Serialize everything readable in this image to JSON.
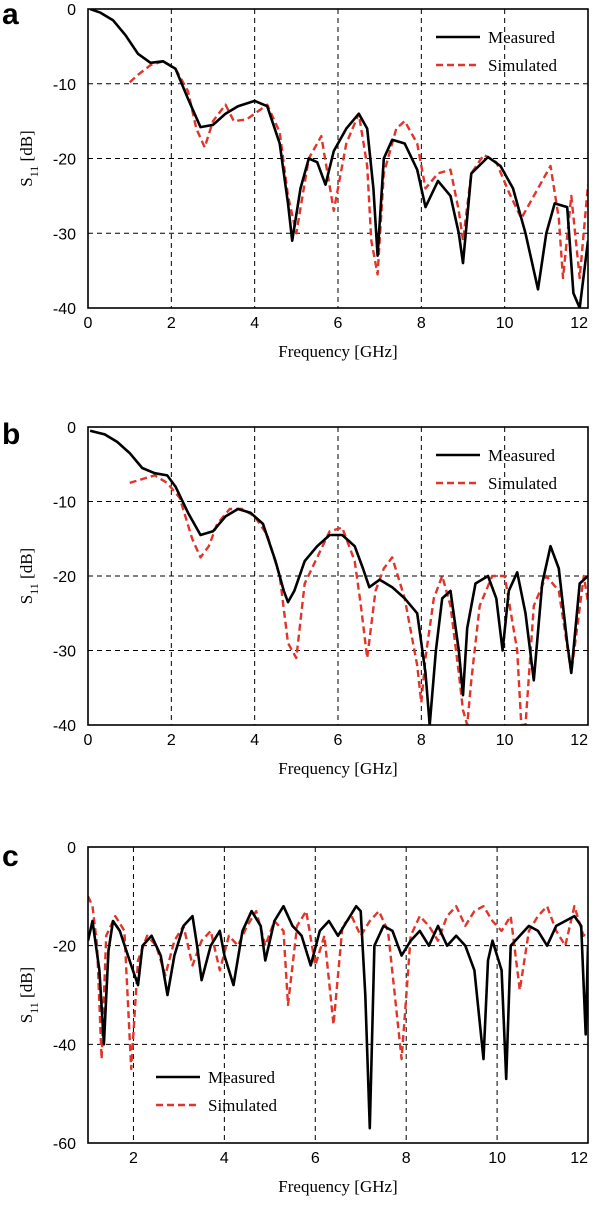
{
  "chart_data": [
    {
      "type": "line",
      "panel": "a",
      "xlabel": "Frequency [GHz]",
      "ylabel": "S11 [dB]",
      "xlim": [
        0,
        12
      ],
      "ylim": [
        -40,
        0
      ],
      "xticks": [
        0,
        2,
        4,
        6,
        8,
        10,
        12
      ],
      "yticks": [
        0,
        -10,
        -20,
        -30,
        -40
      ],
      "grid": true,
      "legend_position": "top-right",
      "series": [
        {
          "name": "Measured",
          "color": "#000000",
          "dash": "solid",
          "x": [
            0.05,
            0.3,
            0.6,
            0.9,
            1.2,
            1.5,
            1.8,
            2.1,
            2.4,
            2.7,
            3.0,
            3.3,
            3.6,
            4.0,
            4.3,
            4.6,
            4.8,
            4.9,
            5.1,
            5.3,
            5.5,
            5.7,
            5.9,
            6.2,
            6.5,
            6.7,
            6.85,
            6.95,
            7.1,
            7.3,
            7.6,
            7.9,
            8.1,
            8.4,
            8.7,
            8.9,
            9.0,
            9.2,
            9.6,
            9.9,
            10.2,
            10.5,
            10.8,
            11.0,
            11.2,
            11.5,
            11.65,
            11.8,
            12.0
          ],
          "y": [
            0,
            -0.5,
            -1.5,
            -3.5,
            -6,
            -7.2,
            -7,
            -8,
            -12,
            -15.8,
            -15.5,
            -14,
            -13,
            -12.3,
            -13,
            -18,
            -26,
            -31,
            -24,
            -20,
            -20.5,
            -23.5,
            -19,
            -16,
            -14,
            -16,
            -24,
            -33,
            -20,
            -17.5,
            -18,
            -21.5,
            -26.5,
            -23,
            -25,
            -30,
            -34,
            -22,
            -19.8,
            -21,
            -24,
            -30,
            -37.5,
            -30,
            -26,
            -26.5,
            -38,
            -40,
            -31
          ]
        },
        {
          "name": "Simulated",
          "color": "#e0352b",
          "dash": "dashed",
          "x": [
            1.0,
            1.2,
            1.5,
            1.8,
            2.1,
            2.4,
            2.6,
            2.8,
            3.0,
            3.3,
            3.5,
            3.8,
            4.0,
            4.3,
            4.6,
            4.8,
            5.0,
            5.3,
            5.6,
            5.9,
            6.2,
            6.5,
            6.7,
            6.8,
            6.95,
            7.1,
            7.4,
            7.6,
            7.9,
            8.1,
            8.4,
            8.7,
            8.9,
            9.0,
            9.2,
            9.5,
            9.8,
            10.1,
            10.4,
            10.8,
            11.1,
            11.3,
            11.4,
            11.6,
            11.8,
            12.0
          ],
          "y": [
            -9.8,
            -8.8,
            -7.5,
            -7,
            -8,
            -11,
            -16,
            -18.5,
            -15,
            -12.8,
            -15,
            -14.8,
            -14,
            -12.8,
            -16.5,
            -25,
            -30,
            -20,
            -17,
            -27,
            -18,
            -14,
            -21,
            -31,
            -35.5,
            -22,
            -16,
            -15,
            -18,
            -24,
            -22,
            -21.5,
            -27,
            -31,
            -22,
            -19.5,
            -20.5,
            -24.5,
            -28,
            -24,
            -21,
            -28,
            -36,
            -25,
            -36,
            -23.5
          ]
        }
      ]
    },
    {
      "type": "line",
      "panel": "b",
      "xlabel": "Frequency [GHz]",
      "ylabel": "S11 [dB]",
      "xlim": [
        0,
        12
      ],
      "ylim": [
        -40,
        0
      ],
      "xticks": [
        0,
        2,
        4,
        6,
        8,
        10,
        12
      ],
      "yticks": [
        0,
        -10,
        -20,
        -30,
        -40
      ],
      "grid": true,
      "legend_position": "top-right",
      "series": [
        {
          "name": "Measured",
          "color": "#000000",
          "dash": "solid",
          "x": [
            0.05,
            0.4,
            0.7,
            1.0,
            1.3,
            1.6,
            1.9,
            2.1,
            2.4,
            2.7,
            3.0,
            3.3,
            3.6,
            3.9,
            4.2,
            4.5,
            4.7,
            4.8,
            4.95,
            5.2,
            5.5,
            5.8,
            6.1,
            6.4,
            6.6,
            6.75,
            7.0,
            7.3,
            7.6,
            7.9,
            8.1,
            8.2,
            8.35,
            8.5,
            8.7,
            8.9,
            9.0,
            9.1,
            9.3,
            9.6,
            9.8,
            9.95,
            10.1,
            10.3,
            10.5,
            10.7,
            10.9,
            11.1,
            11.3,
            11.5,
            11.6,
            11.8,
            12.0
          ],
          "y": [
            -0.5,
            -1,
            -2,
            -3.5,
            -5.5,
            -6.2,
            -6.5,
            -8,
            -11.5,
            -14.5,
            -14,
            -12,
            -11,
            -11.5,
            -13,
            -18,
            -22,
            -23.5,
            -22,
            -18,
            -16,
            -14.5,
            -14.5,
            -16,
            -19,
            -21.5,
            -20.5,
            -21.5,
            -23,
            -25,
            -33,
            -40,
            -30,
            -23,
            -22,
            -30,
            -36,
            -27,
            -21,
            -20,
            -23,
            -30,
            -22,
            -19.5,
            -25,
            -34,
            -21,
            -16,
            -19,
            -29,
            -33,
            -21,
            -20
          ]
        },
        {
          "name": "Simulated",
          "color": "#e0352b",
          "dash": "dashed",
          "x": [
            1.0,
            1.3,
            1.6,
            1.9,
            2.2,
            2.5,
            2.7,
            2.9,
            3.1,
            3.4,
            3.7,
            4.0,
            4.3,
            4.6,
            4.8,
            5.0,
            5.2,
            5.5,
            5.8,
            6.1,
            6.4,
            6.55,
            6.7,
            6.9,
            7.1,
            7.3,
            7.6,
            7.9,
            8.0,
            8.1,
            8.3,
            8.5,
            8.7,
            8.9,
            9.0,
            9.1,
            9.2,
            9.4,
            9.7,
            10.0,
            10.3,
            10.4,
            10.5,
            10.7,
            11.0,
            11.3,
            11.6,
            11.9,
            12.0
          ],
          "y": [
            -7.5,
            -7,
            -6.5,
            -7.5,
            -9.5,
            -15,
            -17.5,
            -16,
            -13,
            -11,
            -11,
            -12,
            -14.5,
            -20,
            -29,
            -31,
            -21,
            -17.5,
            -14,
            -13.5,
            -18,
            -24,
            -31,
            -22,
            -19,
            -17.5,
            -23,
            -32,
            -37,
            -31,
            -23,
            -20,
            -24,
            -33,
            -38,
            -40,
            -34,
            -24,
            -20,
            -20,
            -30,
            -40,
            -40,
            -24,
            -20,
            -22,
            -33,
            -20,
            -23.5
          ]
        }
      ]
    },
    {
      "type": "line",
      "panel": "c",
      "xlabel": "Frequency [GHz]",
      "ylabel": "S11 [dB]",
      "xlim": [
        1,
        12
      ],
      "ylim": [
        -60,
        0
      ],
      "xticks": [
        2,
        4,
        6,
        8,
        10,
        12
      ],
      "yticks": [
        0,
        -20,
        -40,
        -60
      ],
      "grid": true,
      "legend_position": "bottom-left",
      "series": [
        {
          "name": "Measured",
          "color": "#000000",
          "dash": "solid",
          "x": [
            1.0,
            1.1,
            1.25,
            1.35,
            1.45,
            1.55,
            1.7,
            1.95,
            2.1,
            2.2,
            2.4,
            2.6,
            2.75,
            2.9,
            3.1,
            3.3,
            3.4,
            3.5,
            3.7,
            3.9,
            4.0,
            4.2,
            4.4,
            4.6,
            4.8,
            4.9,
            5.1,
            5.3,
            5.5,
            5.7,
            5.9,
            6.1,
            6.3,
            6.5,
            6.7,
            6.9,
            7.0,
            7.1,
            7.2,
            7.3,
            7.5,
            7.7,
            7.9,
            8.1,
            8.3,
            8.5,
            8.7,
            8.9,
            9.1,
            9.3,
            9.5,
            9.7,
            9.8,
            9.9,
            10.1,
            10.2,
            10.3,
            10.5,
            10.7,
            10.9,
            11.1,
            11.3,
            11.5,
            11.7,
            11.85,
            11.95,
            12.0
          ],
          "y": [
            -19,
            -15,
            -25,
            -40,
            -21,
            -15,
            -17,
            -24,
            -28,
            -20,
            -18,
            -22,
            -30,
            -22,
            -16,
            -14,
            -20,
            -27,
            -20,
            -17,
            -22,
            -28,
            -17,
            -13,
            -16,
            -23,
            -15,
            -12,
            -16,
            -18,
            -24,
            -17,
            -15,
            -18,
            -15,
            -12,
            -13,
            -30,
            -57,
            -20,
            -16,
            -17,
            -22,
            -19,
            -17,
            -20,
            -16,
            -20,
            -18,
            -20,
            -25,
            -43,
            -23,
            -19,
            -25,
            -47,
            -20,
            -18,
            -16,
            -17,
            -20,
            -16,
            -15,
            -14,
            -16,
            -38,
            -20
          ]
        },
        {
          "name": "Simulated",
          "color": "#e0352b",
          "dash": "dashed",
          "x": [
            1.0,
            1.1,
            1.2,
            1.3,
            1.4,
            1.6,
            1.8,
            1.95,
            2.1,
            2.3,
            2.5,
            2.7,
            2.9,
            3.1,
            3.3,
            3.5,
            3.7,
            3.9,
            4.1,
            4.3,
            4.5,
            4.7,
            4.9,
            5.1,
            5.3,
            5.4,
            5.6,
            5.8,
            6.0,
            6.2,
            6.4,
            6.6,
            6.8,
            7.0,
            7.2,
            7.4,
            7.6,
            7.75,
            7.9,
            8.1,
            8.3,
            8.5,
            8.7,
            8.9,
            9.1,
            9.3,
            9.5,
            9.7,
            9.9,
            10.1,
            10.3,
            10.5,
            10.7,
            10.9,
            11.1,
            11.3,
            11.5,
            11.7,
            11.9,
            12.0
          ],
          "y": [
            -10,
            -12,
            -20,
            -43,
            -18,
            -14,
            -17,
            -45,
            -23,
            -18,
            -20,
            -26,
            -19,
            -16,
            -24,
            -19,
            -17,
            -25,
            -18,
            -20,
            -16,
            -13,
            -20,
            -15,
            -17,
            -32,
            -16,
            -13,
            -24,
            -18,
            -36,
            -16,
            -14,
            -18,
            -15,
            -13,
            -17,
            -30,
            -43,
            -18,
            -14,
            -16,
            -19,
            -14,
            -12,
            -16,
            -13,
            -12,
            -15,
            -17,
            -14,
            -29,
            -17,
            -14,
            -12,
            -17,
            -20,
            -12,
            -18,
            -17
          ]
        }
      ]
    }
  ],
  "legend": {
    "measured": "Measured",
    "simulated": "Simulated"
  },
  "yaxis_symbol": "S",
  "yaxis_subscript": "11",
  "yaxis_unit": "[dB]"
}
